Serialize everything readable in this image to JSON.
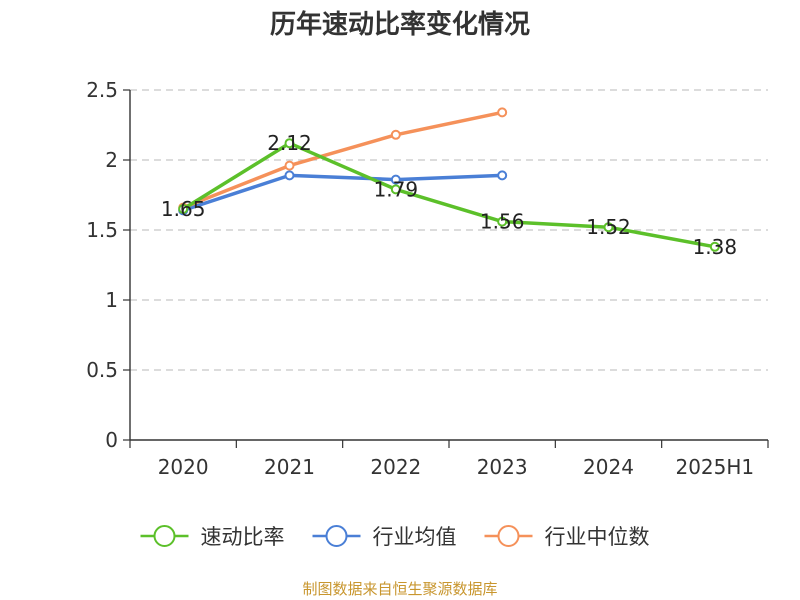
{
  "title": "历年速动比率变化情况",
  "source": "制图数据来自恒生聚源数据库",
  "chart_data": {
    "type": "line",
    "title": "历年速动比率变化情况",
    "categories": [
      "2020",
      "2021",
      "2022",
      "2023",
      "2024",
      "2025H1"
    ],
    "ylim": [
      0,
      2.5
    ],
    "yticks": [
      "0",
      "0.5",
      "1",
      "1.5",
      "2",
      "2.5"
    ],
    "grid": true,
    "legend_position": "bottom",
    "series": [
      {
        "name": "速动比率",
        "color": "#5cc02a",
        "values": [
          1.65,
          2.12,
          1.79,
          1.56,
          1.52,
          1.38
        ],
        "labels": [
          "1.65",
          "2.12",
          "1.79",
          "1.56",
          "1.52",
          "1.38"
        ]
      },
      {
        "name": "行业均值",
        "color": "#4a7fd6",
        "values": [
          1.64,
          1.89,
          1.86,
          1.89,
          null,
          null
        ]
      },
      {
        "name": "行业中位数",
        "color": "#f5915a",
        "values": [
          1.66,
          1.96,
          2.18,
          2.34,
          null,
          null
        ]
      }
    ]
  }
}
